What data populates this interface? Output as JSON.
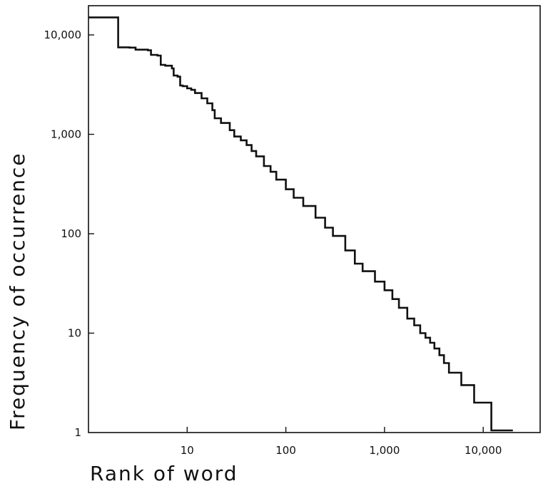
{
  "chart_data": {
    "type": "line",
    "step": true,
    "xlabel": "Rank of word",
    "ylabel": "Frequency of occurrence",
    "x_scale": "log",
    "y_scale": "log",
    "xlim": [
      1,
      25000
    ],
    "ylim": [
      1,
      20000
    ],
    "grid": false,
    "x_ticks": [
      {
        "value": 10,
        "label": "10"
      },
      {
        "value": 100,
        "label": "100"
      },
      {
        "value": 1000,
        "label": "1,000"
      },
      {
        "value": 10000,
        "label": "10,000"
      }
    ],
    "y_ticks": [
      {
        "value": 1,
        "label": "1"
      },
      {
        "value": 10,
        "label": "10"
      },
      {
        "value": 100,
        "label": "100"
      },
      {
        "value": 1000,
        "label": "1,000"
      },
      {
        "value": 10000,
        "label": "10,000"
      }
    ],
    "series": [
      {
        "points": [
          [
            1,
            15000
          ],
          [
            2,
            7500
          ],
          [
            2.6,
            7450
          ],
          [
            3,
            7100
          ],
          [
            4,
            7000
          ],
          [
            4.3,
            6300
          ],
          [
            5,
            6200
          ],
          [
            5.4,
            5000
          ],
          [
            6,
            4900
          ],
          [
            7,
            4600
          ],
          [
            7.3,
            3900
          ],
          [
            8,
            3800
          ],
          [
            8.5,
            3100
          ],
          [
            9,
            3050
          ],
          [
            10,
            2900
          ],
          [
            11,
            2800
          ],
          [
            12,
            2600
          ],
          [
            14,
            2300
          ],
          [
            16,
            2050
          ],
          [
            18,
            1750
          ],
          [
            19,
            1450
          ],
          [
            22,
            1300
          ],
          [
            27,
            1100
          ],
          [
            30,
            950
          ],
          [
            35,
            870
          ],
          [
            40,
            780
          ],
          [
            45,
            680
          ],
          [
            50,
            600
          ],
          [
            60,
            480
          ],
          [
            70,
            420
          ],
          [
            80,
            350
          ],
          [
            100,
            280
          ],
          [
            120,
            230
          ],
          [
            150,
            190
          ],
          [
            200,
            145
          ],
          [
            250,
            115
          ],
          [
            300,
            95
          ],
          [
            400,
            68
          ],
          [
            500,
            50
          ],
          [
            600,
            42
          ],
          [
            800,
            33
          ],
          [
            1000,
            27
          ],
          [
            1200,
            22
          ],
          [
            1400,
            18
          ],
          [
            1700,
            14
          ],
          [
            2000,
            12
          ],
          [
            2300,
            10
          ],
          [
            2600,
            9
          ],
          [
            2900,
            8
          ],
          [
            3200,
            7
          ],
          [
            3600,
            6
          ],
          [
            4000,
            5
          ],
          [
            4500,
            4
          ],
          [
            5900,
            4
          ],
          [
            6000,
            3
          ],
          [
            8000,
            3
          ],
          [
            8100,
            2
          ],
          [
            12000,
            2
          ],
          [
            12100,
            1.05
          ],
          [
            20000,
            1.05
          ]
        ]
      }
    ]
  }
}
